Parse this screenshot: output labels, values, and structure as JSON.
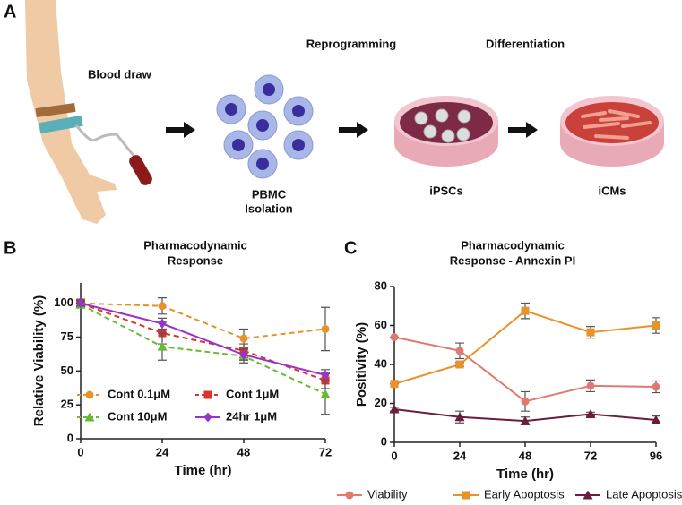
{
  "diagram": {
    "panel_label": "A",
    "blood": "Blood draw",
    "reprogramming": "Reprogramming",
    "differentiation": "Differentiation",
    "pbmc": [
      "PBMC",
      "Isolation"
    ],
    "ipsc": "iPSCs",
    "icm": "iCMs"
  },
  "chart_data": [
    {
      "type": "line",
      "panel_label": "B",
      "title": [
        "Pharmacodynamic",
        "Response"
      ],
      "x_label": "Time (hr)",
      "y_label": "Relative Viability (%)",
      "x": [
        0,
        24,
        48,
        72
      ],
      "xlim": [
        0,
        72
      ],
      "xticks": [
        0,
        24,
        48,
        72
      ],
      "ylim": [
        0,
        115
      ],
      "yticks": [
        0,
        25,
        50,
        75,
        100
      ],
      "series": [
        {
          "name": "Cont 0.1μM",
          "color": "#e8922b",
          "marker": "circle",
          "dashed": true,
          "values": [
            100,
            98,
            74,
            81
          ],
          "errors": [
            3,
            6,
            7,
            16
          ]
        },
        {
          "name": "Cont 1μM",
          "color": "#d9342b",
          "marker": "square",
          "dashed": true,
          "values": [
            100,
            78,
            65,
            43
          ],
          "errors": [
            2,
            8,
            5,
            6
          ]
        },
        {
          "name": "Cont 10μM",
          "color": "#66bb33",
          "marker": "triangle",
          "dashed": true,
          "values": [
            99,
            68,
            61,
            33
          ],
          "errors": [
            2,
            10,
            5,
            15
          ]
        },
        {
          "name": "24hr 1μM",
          "color": "#9933cc",
          "marker": "diamond",
          "dashed": false,
          "values": [
            100,
            85,
            62,
            47
          ],
          "errors": [
            2,
            4,
            4,
            4
          ]
        }
      ]
    },
    {
      "type": "line",
      "panel_label": "C",
      "title": [
        "Pharmacodynamic",
        "Response - Annexin PI"
      ],
      "x_label": "Time (hr)",
      "y_label": "Positivity (%)",
      "x": [
        0,
        24,
        48,
        72,
        96
      ],
      "xlim": [
        0,
        96
      ],
      "xticks": [
        0,
        24,
        48,
        72,
        96
      ],
      "ylim": [
        0,
        80
      ],
      "yticks": [
        0,
        20,
        40,
        60,
        80
      ],
      "series": [
        {
          "name": "Viability",
          "color": "#e07a70",
          "marker": "circle",
          "dashed": false,
          "values": [
            54,
            47,
            21,
            29,
            28.5
          ],
          "errors": [
            0,
            4,
            5,
            3,
            3
          ]
        },
        {
          "name": "Early Apoptosis",
          "color": "#e8922b",
          "marker": "square",
          "dashed": false,
          "values": [
            30,
            40,
            67.5,
            56.5,
            60
          ],
          "errors": [
            0,
            1,
            4,
            3,
            4
          ]
        },
        {
          "name": "Late Apoptosis",
          "color": "#6b1d3f",
          "marker": "triangle",
          "dashed": false,
          "values": [
            17,
            13,
            11,
            14.5,
            11.5
          ],
          "errors": [
            1,
            3,
            2,
            1,
            2
          ]
        }
      ]
    }
  ]
}
